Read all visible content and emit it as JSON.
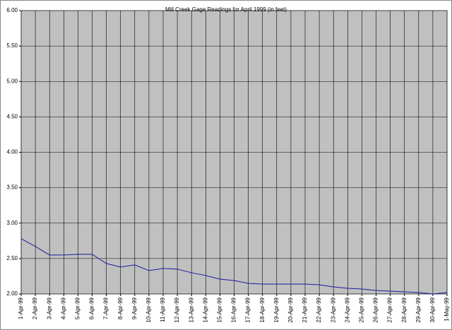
{
  "chart_data": {
    "type": "line",
    "title": "Mill Creek Gage Readings for April 1999 (in feet)",
    "categories": [
      "1-Apr-99",
      "2-Apr-99",
      "3-Apr-99",
      "4-Apr-99",
      "5-Apr-99",
      "6-Apr-99",
      "7-Apr-99",
      "8-Apr-99",
      "9-Apr-99",
      "10-Apr-99",
      "11-Apr-99",
      "12-Apr-99",
      "13-Apr-99",
      "14-Apr-99",
      "15-Apr-99",
      "16-Apr-99",
      "17-Apr-99",
      "18-Apr-99",
      "19-Apr-99",
      "20-Apr-99",
      "21-Apr-99",
      "22-Apr-99",
      "23-Apr-99",
      "24-Apr-99",
      "25-Apr-99",
      "26-Apr-99",
      "27-Apr-99",
      "28-Apr-99",
      "29-Apr-99",
      "30-Apr-99",
      "1-May-99"
    ],
    "values": [
      2.78,
      2.67,
      2.55,
      2.55,
      2.56,
      2.56,
      2.43,
      2.38,
      2.41,
      2.33,
      2.36,
      2.35,
      2.3,
      2.26,
      2.21,
      2.19,
      2.15,
      2.14,
      2.14,
      2.14,
      2.14,
      2.13,
      2.1,
      2.08,
      2.07,
      2.05,
      2.04,
      2.03,
      2.02,
      2.0,
      2.02
    ],
    "color": "#1a1aa0",
    "ylim": [
      2,
      6
    ],
    "yticks": [
      {
        "value": 2,
        "label": "2.00"
      },
      {
        "value": 2.5,
        "label": "2.50"
      },
      {
        "value": 3,
        "label": "3.00"
      },
      {
        "value": 3.5,
        "label": "3.50"
      },
      {
        "value": 4,
        "label": "4.00"
      },
      {
        "value": 4.5,
        "label": "4.50"
      },
      {
        "value": 5,
        "label": "5.00"
      },
      {
        "value": 5.5,
        "label": "5.50"
      },
      {
        "value": 6,
        "label": "6.00"
      }
    ],
    "grid": true
  }
}
